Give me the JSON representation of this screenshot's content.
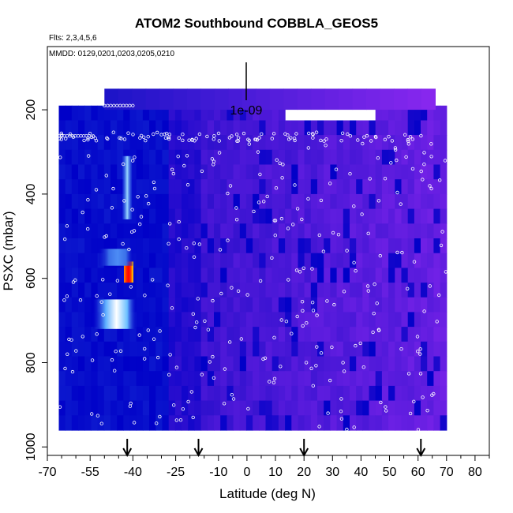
{
  "chart_data": {
    "type": "heatmap",
    "title": "ATOM2 Southbound COBBLA_GEOS5",
    "flights_note": "Flts: 2,3,4,5,6",
    "dates_note": "MMDD: 0129,0201,0203,0205,0210",
    "xlabel": "Latitude (deg N)",
    "ylabel": "PSXC (mbar)",
    "xlim": [
      -70,
      85
    ],
    "ylim": [
      1020,
      50
    ],
    "x_ticks": [
      -70,
      -55,
      -40,
      -25,
      -10,
      0,
      10,
      20,
      30,
      40,
      50,
      60,
      70,
      80
    ],
    "x_tick_labels": [
      "-70",
      "-55",
      "-40",
      "-25",
      "-10",
      "0",
      "10",
      "20",
      "30",
      "40",
      "50",
      "60",
      "70",
      "80"
    ],
    "x_minor_ticks": [
      -65,
      -60,
      -50,
      -45,
      -35,
      -30,
      -20,
      -15,
      -5,
      5,
      15,
      25,
      35,
      45,
      55,
      65,
      75,
      85
    ],
    "y_ticks": [
      200,
      400,
      600,
      800,
      1000
    ],
    "y_tick_labels": [
      "200",
      "400",
      "600",
      "800",
      "1000"
    ],
    "scale_bar_label": "1e-09",
    "arrow_latitudes": [
      -42,
      -17,
      20,
      61
    ],
    "grid": false,
    "legend": "none",
    "colors": {
      "low": "#0000c8",
      "mid": "#3c14d2",
      "high": "#8c28f0",
      "hot": "#ff0000",
      "white": "#ffffff",
      "marker_stroke": "#ffffff"
    },
    "coverage": {
      "lat_range": [
        -66,
        70
      ],
      "pressure_range": [
        190,
        960
      ],
      "top_strip_lat_range": [
        -50,
        66
      ],
      "top_strip_pressure_range": [
        150,
        200
      ]
    },
    "features": [
      {
        "name": "hotspot",
        "lat": -41.5,
        "pressure_range": [
          560,
          610
        ],
        "level": "max"
      },
      {
        "name": "bright-band",
        "lat_range": [
          -54,
          -39
        ],
        "pressure_range": [
          650,
          720
        ],
        "level": "high"
      },
      {
        "name": "bright-band",
        "lat_range": [
          -52,
          -40
        ],
        "pressure_range": [
          530,
          570
        ],
        "level": "medium"
      },
      {
        "name": "vertical-streak",
        "lat": -42,
        "pressure_range": [
          310,
          460
        ],
        "level": "medium"
      }
    ]
  }
}
